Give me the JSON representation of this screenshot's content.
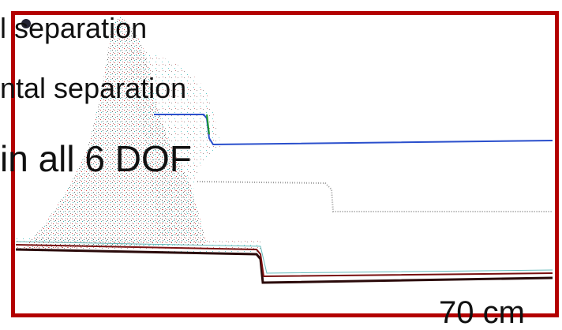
{
  "overlay_texts": [
    "l separation",
    "ntal separation",
    "in all 6 DOF"
  ],
  "scale_label": "70 cm"
}
